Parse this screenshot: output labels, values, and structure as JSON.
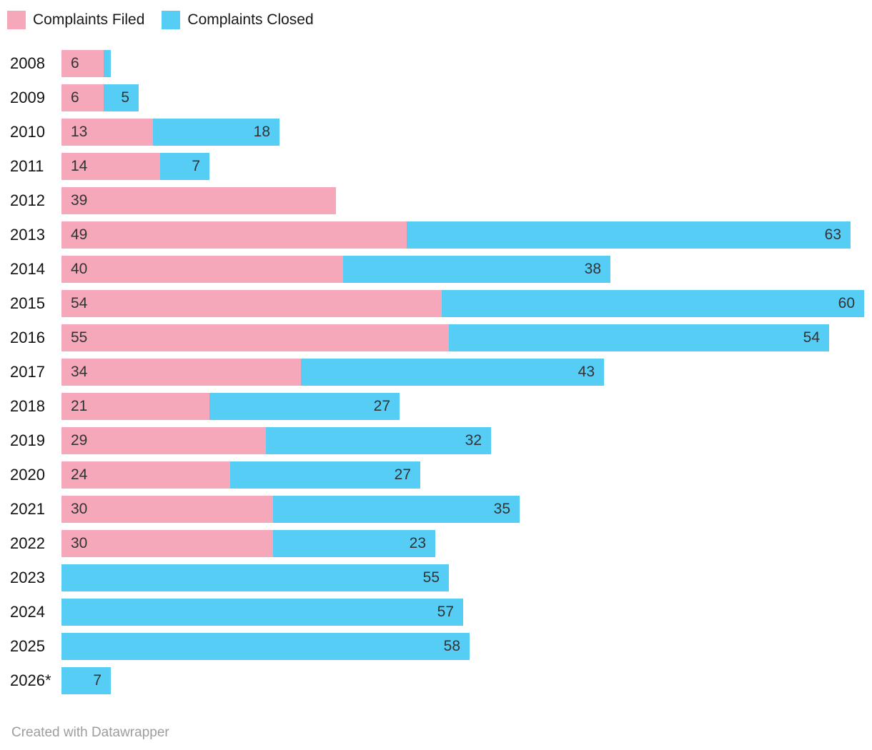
{
  "legend": {
    "items": [
      {
        "label": "Complaints Filed"
      },
      {
        "label": "Complaints Closed"
      }
    ]
  },
  "footer": {
    "attribution": "Created with Datawrapper"
  },
  "chart_data": {
    "type": "bar",
    "orientation": "horizontal",
    "stacked": true,
    "title": "",
    "xlabel": "",
    "ylabel": "",
    "grid": false,
    "legend_position": "top",
    "xmax": 114,
    "label_min_value": 2,
    "categories": [
      "2008",
      "2009",
      "2010",
      "2011",
      "2012",
      "2013",
      "2014",
      "2015",
      "2016",
      "2017",
      "2018",
      "2019",
      "2020",
      "2021",
      "2022",
      "2023",
      "2024",
      "2025",
      "2026*"
    ],
    "series": [
      {
        "name": "Complaints Filed",
        "color": "#f4a8b9",
        "values": [
          6,
          6,
          13,
          14,
          39,
          49,
          40,
          54,
          55,
          34,
          21,
          29,
          24,
          30,
          30,
          0,
          0,
          0,
          0
        ]
      },
      {
        "name": "Complaints Closed",
        "color": "#55cdf5",
        "values": [
          1,
          5,
          18,
          7,
          0,
          63,
          38,
          60,
          54,
          43,
          27,
          32,
          27,
          35,
          23,
          55,
          57,
          58,
          7
        ]
      }
    ]
  }
}
